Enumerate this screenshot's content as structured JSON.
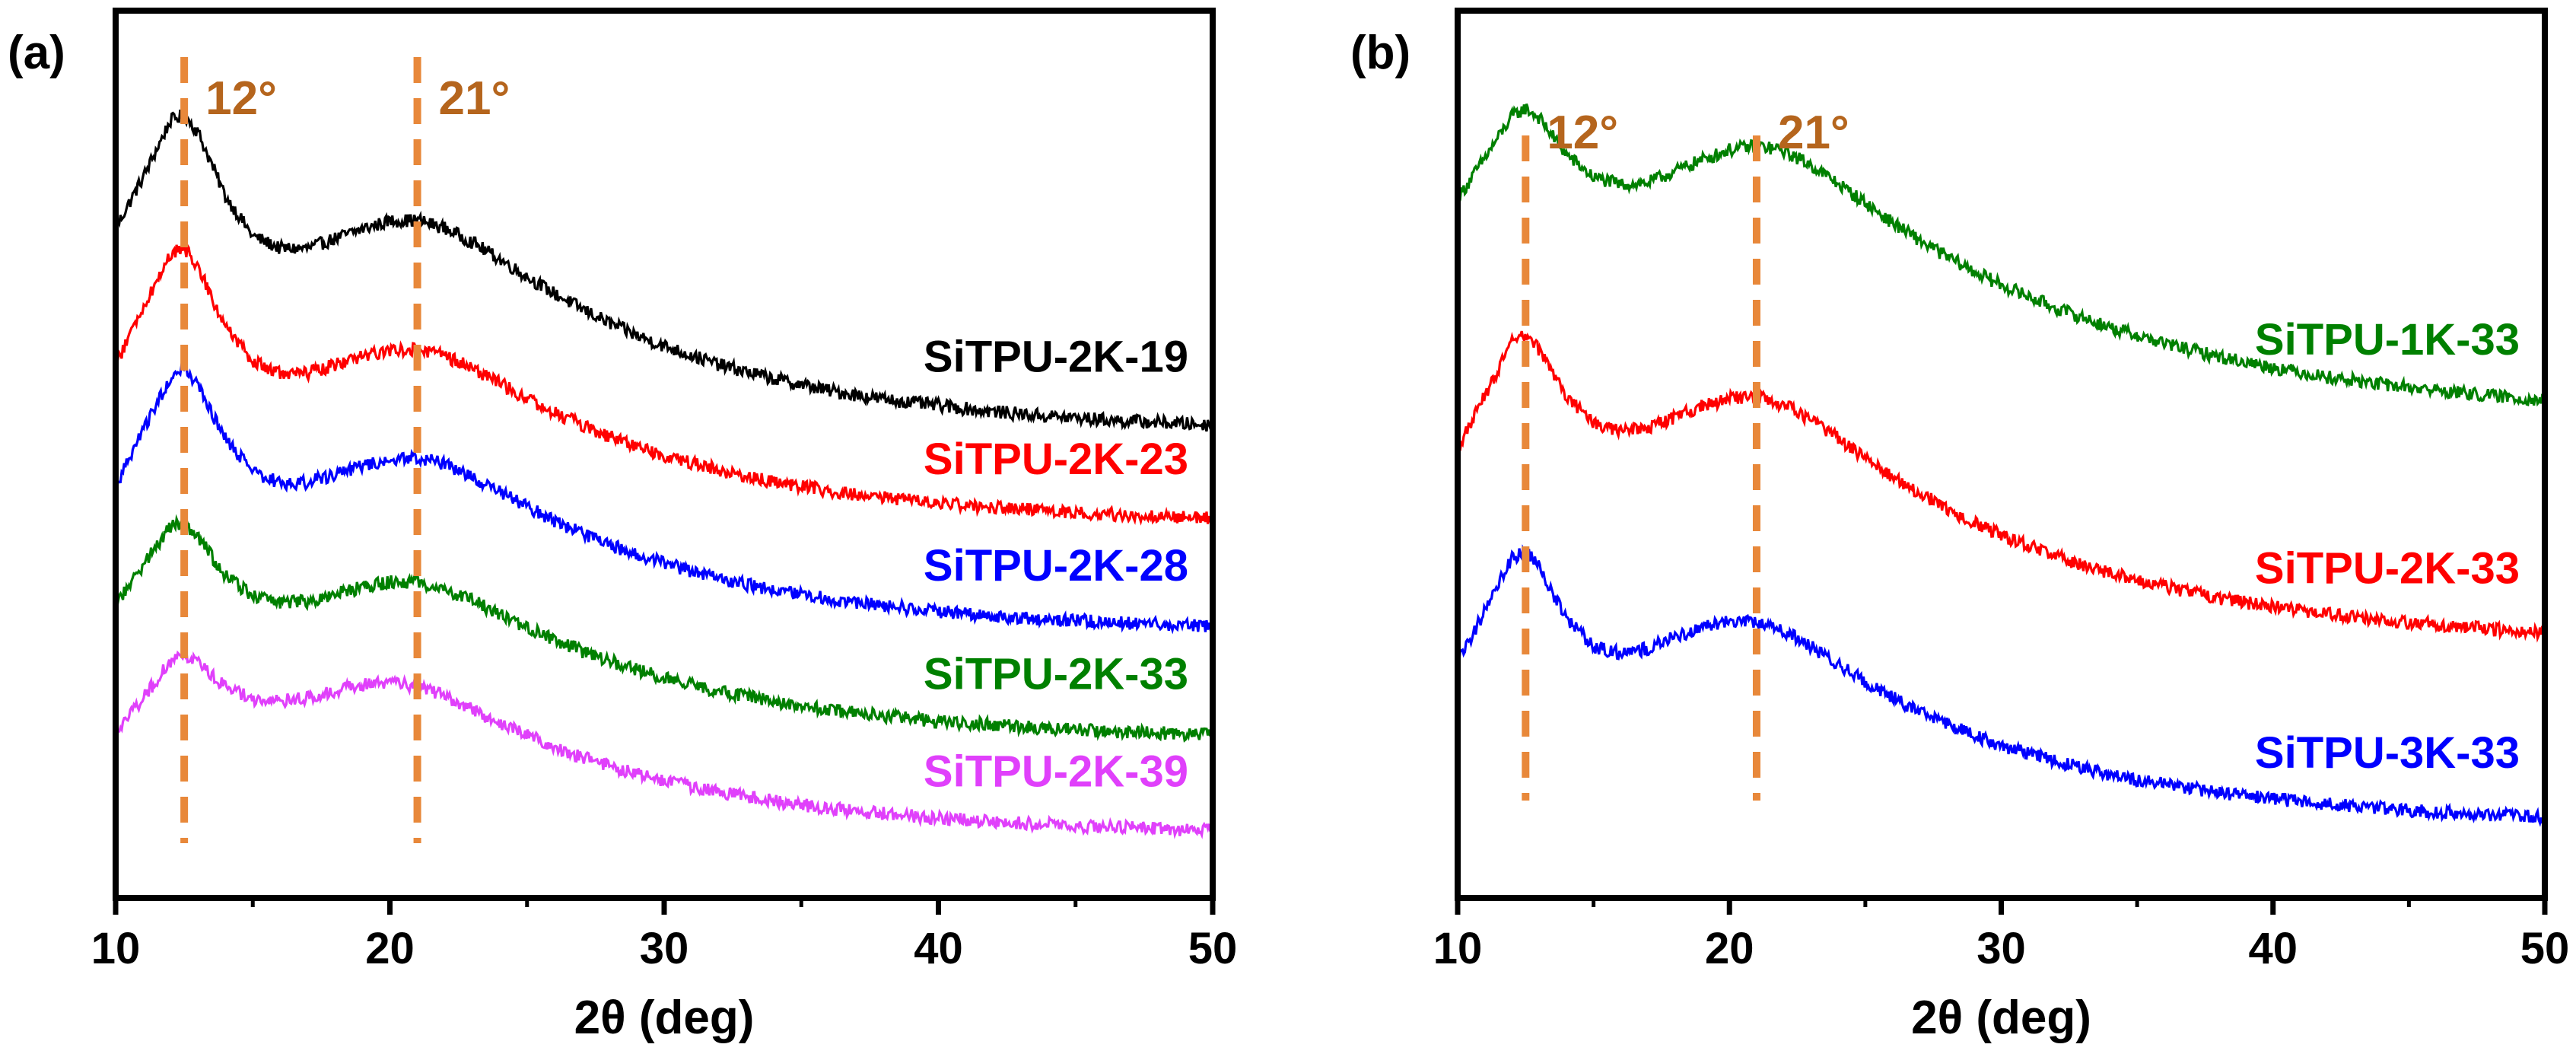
{
  "figure_colors": {
    "black": "#000000",
    "red": "#ff0000",
    "blue": "#0000ff",
    "green": "#008000",
    "magenta": "#e040fb",
    "peak": "#e8883a",
    "peak_label": "#b5651d"
  },
  "chart_data": [
    {
      "type": "line",
      "panel_label": "(a)",
      "xlabel": "2θ (deg)",
      "ylabel": "",
      "xlim": [
        10,
        50
      ],
      "ylim": [
        0,
        100
      ],
      "xticks": [
        "10",
        "20",
        "30",
        "40",
        "50"
      ],
      "yticks_visible": false,
      "grid": false,
      "legend": "inline labels on right side of each curve",
      "annotations": [
        {
          "label": "12°",
          "x": 12.5,
          "style": "dashed vertical line",
          "color": "#e8883a",
          "text_color": "#b5651d"
        },
        {
          "label": "21°",
          "x": 21,
          "style": "dashed vertical line",
          "color": "#e8883a",
          "text_color": "#b5651d"
        }
      ],
      "series": [
        {
          "name": "SiTPU-2K-19",
          "color": "#000000",
          "points": [
            [
              10,
              75.5
            ],
            [
              11,
              81.2
            ],
            [
              12,
              87.6
            ],
            [
              12.5,
              88.3
            ],
            [
              13,
              86.3
            ],
            [
              14,
              79.1
            ],
            [
              15,
              74.6
            ],
            [
              16,
              73.2
            ],
            [
              17,
              73.2
            ],
            [
              18,
              74.3
            ],
            [
              19,
              75.4
            ],
            [
              20,
              76.3
            ],
            [
              21,
              76.4
            ],
            [
              22,
              75.5
            ],
            [
              23,
              73.9
            ],
            [
              24,
              72.0
            ],
            [
              25,
              70.0
            ],
            [
              26,
              68.1
            ],
            [
              27,
              66.4
            ],
            [
              28,
              64.8
            ],
            [
              29,
              63.4
            ],
            [
              30,
              62.2
            ],
            [
              32,
              60.1
            ],
            [
              34,
              58.5
            ],
            [
              36,
              57.2
            ],
            [
              38,
              56.2
            ],
            [
              40,
              55.5
            ],
            [
              42,
              54.8
            ],
            [
              44,
              54.3
            ],
            [
              46,
              53.9
            ],
            [
              48,
              53.6
            ],
            [
              50,
              53.3
            ]
          ]
        },
        {
          "name": "SiTPU-2K-23",
          "color": "#ff0000",
          "points": [
            [
              10,
              60.1
            ],
            [
              11,
              66.5
            ],
            [
              12,
              72.6
            ],
            [
              12.5,
              73.3
            ],
            [
              13,
              71.1
            ],
            [
              14,
              64.4
            ],
            [
              15,
              60.4
            ],
            [
              16,
              59.1
            ],
            [
              17,
              59.1
            ],
            [
              18,
              60.1
            ],
            [
              19,
              61.0
            ],
            [
              20,
              61.8
            ],
            [
              21,
              61.9
            ],
            [
              22,
              61.1
            ],
            [
              23,
              59.7
            ],
            [
              24,
              58.0
            ],
            [
              25,
              56.3
            ],
            [
              26,
              54.7
            ],
            [
              27,
              53.3
            ],
            [
              28,
              52.0
            ],
            [
              29,
              50.9
            ],
            [
              30,
              49.9
            ],
            [
              32,
              48.2
            ],
            [
              34,
              46.9
            ],
            [
              36,
              45.9
            ],
            [
              38,
              45.1
            ],
            [
              40,
              44.5
            ],
            [
              42,
              44.0
            ],
            [
              44,
              43.6
            ],
            [
              46,
              43.3
            ],
            [
              48,
              43.0
            ],
            [
              50,
              42.8
            ]
          ]
        },
        {
          "name": "SiTPU-2K-28",
          "color": "#0000ff",
          "points": [
            [
              10,
              46.3
            ],
            [
              11,
              52.6
            ],
            [
              12,
              58.8
            ],
            [
              12.5,
              59.5
            ],
            [
              13,
              57.7
            ],
            [
              14,
              51.7
            ],
            [
              15,
              48.0
            ],
            [
              16,
              46.8
            ],
            [
              17,
              46.8
            ],
            [
              18,
              47.8
            ],
            [
              19,
              48.7
            ],
            [
              20,
              49.5
            ],
            [
              21,
              49.6
            ],
            [
              22,
              48.9
            ],
            [
              23,
              47.4
            ],
            [
              24,
              45.8
            ],
            [
              25,
              44.1
            ],
            [
              26,
              42.5
            ],
            [
              27,
              41.1
            ],
            [
              28,
              39.8
            ],
            [
              29,
              38.7
            ],
            [
              30,
              37.7
            ],
            [
              32,
              36.0
            ],
            [
              34,
              34.7
            ],
            [
              36,
              33.7
            ],
            [
              38,
              32.9
            ],
            [
              40,
              32.3
            ],
            [
              42,
              31.8
            ],
            [
              44,
              31.4
            ],
            [
              46,
              31.1
            ],
            [
              48,
              30.8
            ],
            [
              50,
              30.6
            ]
          ]
        },
        {
          "name": "SiTPU-2K-33",
          "color": "#008000",
          "points": [
            [
              10,
              33.1
            ],
            [
              11,
              37.5
            ],
            [
              12,
              41.9
            ],
            [
              12.5,
              42.2
            ],
            [
              13,
              40.7
            ],
            [
              14,
              36.3
            ],
            [
              15,
              34.0
            ],
            [
              16,
              33.3
            ],
            [
              17,
              33.4
            ],
            [
              18,
              34.3
            ],
            [
              19,
              35.0
            ],
            [
              20,
              35.6
            ],
            [
              21,
              35.6
            ],
            [
              22,
              34.8
            ],
            [
              23,
              33.5
            ],
            [
              24,
              32.0
            ],
            [
              25,
              30.5
            ],
            [
              26,
              29.1
            ],
            [
              27,
              27.8
            ],
            [
              28,
              26.7
            ],
            [
              29,
              25.7
            ],
            [
              30,
              24.8
            ],
            [
              32,
              23.3
            ],
            [
              34,
              22.1
            ],
            [
              36,
              21.2
            ],
            [
              38,
              20.5
            ],
            [
              40,
              19.9
            ],
            [
              42,
              19.5
            ],
            [
              44,
              19.1
            ],
            [
              46,
              18.8
            ],
            [
              48,
              18.6
            ],
            [
              50,
              18.4
            ]
          ]
        },
        {
          "name": "SiTPU-2K-39",
          "color": "#e040fb",
          "points": [
            [
              10,
              18.6
            ],
            [
              11,
              22.5
            ],
            [
              12,
              26.7
            ],
            [
              12.5,
              27.3
            ],
            [
              13,
              26.5
            ],
            [
              14,
              23.8
            ],
            [
              15,
              22.4
            ],
            [
              16,
              22.2
            ],
            [
              17,
              22.6
            ],
            [
              18,
              23.4
            ],
            [
              19,
              24.0
            ],
            [
              20,
              24.2
            ],
            [
              21,
              23.8
            ],
            [
              22,
              22.7
            ],
            [
              23,
              21.2
            ],
            [
              24,
              19.7
            ],
            [
              25,
              18.3
            ],
            [
              26,
              17.0
            ],
            [
              27,
              15.9
            ],
            [
              28,
              14.9
            ],
            [
              29,
              14.0
            ],
            [
              30,
              13.2
            ],
            [
              32,
              11.9
            ],
            [
              34,
              10.9
            ],
            [
              36,
              10.1
            ],
            [
              38,
              9.5
            ],
            [
              40,
              9.0
            ],
            [
              42,
              8.6
            ],
            [
              44,
              8.3
            ],
            [
              46,
              8.0
            ],
            [
              48,
              7.8
            ],
            [
              50,
              7.6
            ]
          ]
        }
      ],
      "series_labels": [
        "SiTPU-2K-19",
        "SiTPU-2K-23",
        "SiTPU-2K-28",
        "SiTPU-2K-33",
        "SiTPU-2K-39"
      ]
    },
    {
      "type": "line",
      "panel_label": "(b)",
      "xlabel": "2θ (deg)",
      "ylabel": "",
      "xlim": [
        10,
        50
      ],
      "ylim": [
        0,
        100
      ],
      "xticks": [
        "10",
        "20",
        "30",
        "40",
        "50"
      ],
      "yticks_visible": false,
      "grid": false,
      "legend": "inline labels on right side of each curve",
      "annotations": [
        {
          "label": "12°",
          "x": 12.5,
          "style": "dashed vertical line",
          "color": "#e8883a",
          "text_color": "#b5651d"
        },
        {
          "label": "21°",
          "x": 21,
          "style": "dashed vertical line",
          "color": "#e8883a",
          "text_color": "#b5651d"
        }
      ],
      "series": [
        {
          "name": "SiTPU-1K-33",
          "color": "#008000",
          "points": [
            [
              10,
              78.8
            ],
            [
              11,
              83.4
            ],
            [
              12,
              88.1
            ],
            [
              12.5,
              89.0
            ],
            [
              13,
              87.9
            ],
            [
              14,
              83.8
            ],
            [
              15,
              81.2
            ],
            [
              16,
              80.4
            ],
            [
              17,
              80.6
            ],
            [
              18,
              81.9
            ],
            [
              19,
              83.2
            ],
            [
              20,
              84.3
            ],
            [
              21,
              84.8
            ],
            [
              22,
              84.2
            ],
            [
              23,
              82.6
            ],
            [
              24,
              80.5
            ],
            [
              25,
              78.3
            ],
            [
              26,
              76.1
            ],
            [
              27,
              74.1
            ],
            [
              28,
              72.3
            ],
            [
              29,
              70.6
            ],
            [
              30,
              69.1
            ],
            [
              32,
              66.5
            ],
            [
              34,
              64.3
            ],
            [
              36,
              62.5
            ],
            [
              38,
              61.0
            ],
            [
              40,
              59.8
            ],
            [
              42,
              58.7
            ],
            [
              44,
              57.9
            ],
            [
              46,
              57.2
            ],
            [
              48,
              56.6
            ],
            [
              50,
              56.1
            ]
          ]
        },
        {
          "name": "SiTPU-2K-33",
          "color": "#ff0000",
          "points": [
            [
              10,
              50.6
            ],
            [
              11,
              56.6
            ],
            [
              12,
              62.6
            ],
            [
              12.5,
              63.4
            ],
            [
              13,
              61.8
            ],
            [
              14,
              56.6
            ],
            [
              15,
              53.4
            ],
            [
              16,
              52.6
            ],
            [
              17,
              52.9
            ],
            [
              18,
              54.2
            ],
            [
              19,
              55.4
            ],
            [
              20,
              56.3
            ],
            [
              21,
              56.5
            ],
            [
              22,
              55.6
            ],
            [
              23,
              53.9
            ],
            [
              24,
              51.8
            ],
            [
              25,
              49.6
            ],
            [
              26,
              47.5
            ],
            [
              27,
              45.6
            ],
            [
              28,
              43.9
            ],
            [
              29,
              42.3
            ],
            [
              30,
              40.9
            ],
            [
              32,
              38.5
            ],
            [
              34,
              36.6
            ],
            [
              36,
              35.1
            ],
            [
              38,
              33.8
            ],
            [
              40,
              32.8
            ],
            [
              42,
              32.0
            ],
            [
              44,
              31.3
            ],
            [
              46,
              30.8
            ],
            [
              48,
              30.3
            ],
            [
              50,
              29.9
            ]
          ]
        },
        {
          "name": "SiTPU-3K-33",
          "color": "#0000ff",
          "points": [
            [
              10,
              26.5
            ],
            [
              11,
              32.4
            ],
            [
              12,
              38.3
            ],
            [
              12.5,
              39.1
            ],
            [
              13,
              37.2
            ],
            [
              14,
              31.5
            ],
            [
              15,
              28.3
            ],
            [
              16,
              27.6
            ],
            [
              17,
              28.1
            ],
            [
              18,
              29.4
            ],
            [
              19,
              30.6
            ],
            [
              20,
              31.3
            ],
            [
              21,
              31.2
            ],
            [
              22,
              30.1
            ],
            [
              23,
              28.3
            ],
            [
              24,
              26.3
            ],
            [
              25,
              24.4
            ],
            [
              26,
              22.6
            ],
            [
              27,
              21.0
            ],
            [
              28,
              19.6
            ],
            [
              29,
              18.3
            ],
            [
              30,
              17.2
            ],
            [
              32,
              15.4
            ],
            [
              34,
              13.9
            ],
            [
              36,
              12.8
            ],
            [
              38,
              11.9
            ],
            [
              40,
              11.2
            ],
            [
              42,
              10.6
            ],
            [
              44,
              10.1
            ],
            [
              46,
              9.7
            ],
            [
              48,
              9.4
            ],
            [
              50,
              9.1
            ]
          ]
        }
      ],
      "series_labels": [
        "SiTPU-1K-33",
        "SiTPU-2K-33",
        "SiTPU-3K-33"
      ]
    }
  ]
}
